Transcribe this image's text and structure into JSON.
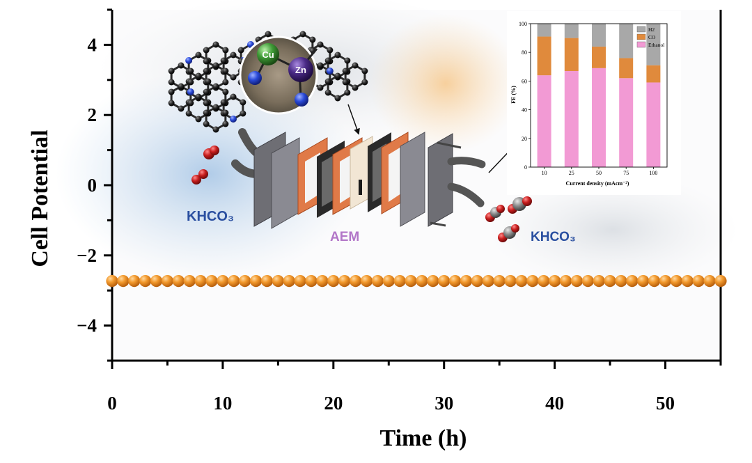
{
  "chart_data": [
    {
      "type": "scatter",
      "xlabel": "Time (h)",
      "ylabel": "Cell Potential",
      "xlim": [
        0,
        55
      ],
      "ylim": [
        -5,
        5
      ],
      "xticks": [
        0,
        10,
        20,
        30,
        40,
        50
      ],
      "yticks": [
        -4,
        -2,
        0,
        2,
        4
      ],
      "y_tick_labels": [
        "−4",
        "−2",
        "0",
        "2",
        "4"
      ],
      "series": [
        {
          "color": "#f0902a",
          "x": [
            0,
            1,
            2,
            3,
            4,
            5,
            6,
            7,
            8,
            9,
            10,
            11,
            12,
            13,
            14,
            15,
            16,
            17,
            18,
            19,
            20,
            21,
            22,
            23,
            24,
            25,
            26,
            27,
            28,
            29,
            30,
            31,
            32,
            33,
            34,
            35,
            36,
            37,
            38,
            39,
            40,
            41,
            42,
            43,
            44,
            45,
            46,
            47,
            48,
            49,
            50,
            51,
            52,
            53,
            54,
            55
          ],
          "y": [
            -2.73,
            -2.73,
            -2.73,
            -2.73,
            -2.73,
            -2.73,
            -2.73,
            -2.73,
            -2.73,
            -2.73,
            -2.73,
            -2.73,
            -2.73,
            -2.73,
            -2.73,
            -2.73,
            -2.73,
            -2.73,
            -2.73,
            -2.73,
            -2.73,
            -2.73,
            -2.73,
            -2.73,
            -2.73,
            -2.73,
            -2.73,
            -2.73,
            -2.73,
            -2.73,
            -2.73,
            -2.73,
            -2.73,
            -2.73,
            -2.73,
            -2.73,
            -2.73,
            -2.73,
            -2.73,
            -2.73,
            -2.73,
            -2.73,
            -2.73,
            -2.73,
            -2.73,
            -2.73,
            -2.73,
            -2.73,
            -2.73,
            -2.73,
            -2.73,
            -2.73,
            -2.73,
            -2.73,
            -2.73,
            -2.73
          ]
        }
      ]
    },
    {
      "type": "bar",
      "stacked": true,
      "xlabel": "Current density (mAcm⁻²)",
      "ylabel": "FE (%)",
      "ylim": [
        0,
        100
      ],
      "yticks": [
        0,
        20,
        40,
        60,
        80,
        100
      ],
      "categories": [
        "10",
        "25",
        "50",
        "75",
        "100"
      ],
      "legend_position": "top-right",
      "series": [
        {
          "name": "Ethanol",
          "color": "#f29ad4",
          "values": [
            64,
            67,
            69,
            62,
            59
          ]
        },
        {
          "name": "CO",
          "color": "#e08a3c",
          "values": [
            27,
            23,
            15,
            14,
            12
          ]
        },
        {
          "name": "H2",
          "color": "#a8a8a8",
          "values": [
            9,
            10,
            16,
            24,
            29
          ]
        }
      ]
    }
  ],
  "annotations": {
    "cu": "Cu",
    "zn": "Zn",
    "khco3_left": "KHCO₃",
    "khco3_right": "KHCO₃",
    "aem": "AEM"
  },
  "colors": {
    "khco3_text": "#2a4fa0",
    "aem_text": "#b276c8",
    "cu_atom": "#3e9a36",
    "zn_atom": "#4a2a86",
    "n_atom": "#2a4ad8",
    "o_atom": "#c81e1e"
  }
}
